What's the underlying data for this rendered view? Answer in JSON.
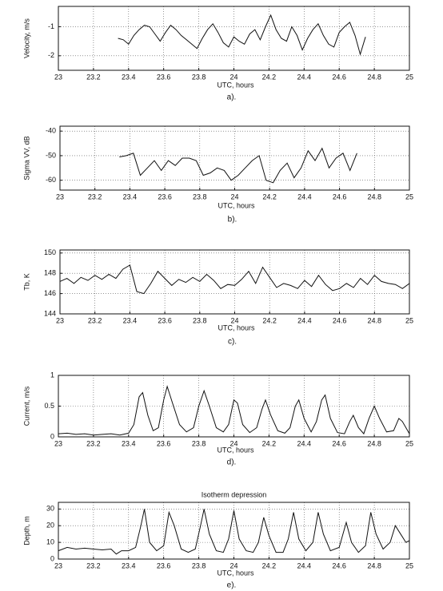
{
  "chart_data": [
    {
      "type": "line",
      "x_label": "UTC, hours",
      "y_label": "Velocity, m/s",
      "caption": "a).",
      "color": "#111111",
      "grid": true,
      "xlim": [
        23,
        25
      ],
      "ylim": [
        -2.5,
        -0.3
      ],
      "xticks": [
        23,
        23.2,
        23.4,
        23.6,
        23.8,
        24,
        24.2,
        24.4,
        24.6,
        24.8,
        25
      ],
      "yticks": [
        -2,
        -1
      ],
      "x": [
        23.34,
        23.37,
        23.4,
        23.43,
        23.46,
        23.49,
        23.52,
        23.55,
        23.58,
        23.61,
        23.64,
        23.67,
        23.7,
        23.73,
        23.76,
        23.79,
        23.82,
        23.85,
        23.88,
        23.91,
        23.94,
        23.97,
        24.0,
        24.03,
        24.06,
        24.09,
        24.12,
        24.15,
        24.18,
        24.21,
        24.24,
        24.27,
        24.3,
        24.33,
        24.36,
        24.39,
        24.42,
        24.45,
        24.48,
        24.51,
        24.54,
        24.57,
        24.6,
        24.63,
        24.66,
        24.69,
        24.72,
        24.75
      ],
      "values": [
        -1.4,
        -1.45,
        -1.6,
        -1.3,
        -1.1,
        -0.95,
        -1.0,
        -1.25,
        -1.5,
        -1.2,
        -0.95,
        -1.1,
        -1.3,
        -1.45,
        -1.6,
        -1.75,
        -1.4,
        -1.1,
        -0.9,
        -1.2,
        -1.55,
        -1.7,
        -1.35,
        -1.5,
        -1.6,
        -1.25,
        -1.1,
        -1.45,
        -1.0,
        -0.6,
        -1.1,
        -1.4,
        -1.5,
        -1.0,
        -1.3,
        -1.8,
        -1.4,
        -1.1,
        -0.9,
        -1.3,
        -1.6,
        -1.7,
        -1.2,
        -1.0,
        -0.85,
        -1.3,
        -1.95,
        -1.35
      ]
    },
    {
      "type": "line",
      "x_label": "UTC, hours",
      "y_label": "Sigma VV, dB",
      "caption": "b).",
      "color": "#111111",
      "grid": true,
      "xlim": [
        23,
        25
      ],
      "ylim": [
        -64,
        -38
      ],
      "xticks": [
        23,
        23.2,
        23.4,
        23.6,
        23.8,
        24,
        24.2,
        24.4,
        24.6,
        24.8,
        25
      ],
      "yticks": [
        -60,
        -50,
        -40
      ],
      "x": [
        23.34,
        23.38,
        23.42,
        23.46,
        23.5,
        23.54,
        23.58,
        23.62,
        23.66,
        23.7,
        23.74,
        23.78,
        23.82,
        23.86,
        23.9,
        23.94,
        23.98,
        24.02,
        24.06,
        24.1,
        24.14,
        24.18,
        24.22,
        24.26,
        24.3,
        24.34,
        24.38,
        24.42,
        24.46,
        24.5,
        24.54,
        24.58,
        24.62,
        24.66,
        24.7
      ],
      "values": [
        -50.5,
        -50,
        -49,
        -58,
        -55,
        -52,
        -56,
        -52,
        -54,
        -51,
        -51,
        -52,
        -58,
        -57,
        -55,
        -56,
        -60,
        -58,
        -55,
        -52,
        -50,
        -60,
        -61,
        -56,
        -53,
        -59,
        -55,
        -48,
        -52,
        -47,
        -55,
        -51,
        -49,
        -56,
        -49
      ]
    },
    {
      "type": "line",
      "x_label": "UTC, hours",
      "y_label": "Tb, K",
      "caption": "c).",
      "color": "#111111",
      "grid": true,
      "xlim": [
        23,
        25
      ],
      "ylim": [
        144,
        150.3
      ],
      "xticks": [
        23,
        23.2,
        23.4,
        23.6,
        23.8,
        24,
        24.2,
        24.4,
        24.6,
        24.8,
        25
      ],
      "yticks": [
        144,
        146,
        148,
        150
      ],
      "x": [
        23,
        23.04,
        23.08,
        23.12,
        23.16,
        23.2,
        23.24,
        23.28,
        23.32,
        23.36,
        23.4,
        23.44,
        23.48,
        23.52,
        23.56,
        23.6,
        23.64,
        23.68,
        23.72,
        23.76,
        23.8,
        23.84,
        23.88,
        23.92,
        23.96,
        24,
        24.04,
        24.08,
        24.12,
        24.16,
        24.2,
        24.24,
        24.28,
        24.32,
        24.36,
        24.4,
        24.44,
        24.48,
        24.52,
        24.56,
        24.6,
        24.64,
        24.68,
        24.72,
        24.76,
        24.8,
        24.84,
        24.88,
        24.92,
        24.96,
        25
      ],
      "values": [
        147.2,
        147.5,
        147.0,
        147.6,
        147.3,
        147.8,
        147.4,
        147.9,
        147.5,
        148.4,
        148.8,
        146.2,
        146.0,
        147.0,
        148.2,
        147.5,
        146.8,
        147.4,
        147.1,
        147.6,
        147.2,
        147.9,
        147.3,
        146.5,
        146.9,
        146.8,
        147.4,
        148.2,
        147.0,
        148.6,
        147.6,
        146.6,
        147.0,
        146.8,
        146.5,
        147.3,
        146.7,
        147.8,
        146.9,
        146.3,
        146.5,
        147.0,
        146.6,
        147.5,
        146.9,
        147.8,
        147.2,
        147.0,
        146.9,
        146.5,
        147.0
      ]
    },
    {
      "type": "line",
      "x_label": "UTC, hours",
      "y_label": "Current, m/s",
      "caption": "d).",
      "color": "#111111",
      "grid": true,
      "xlim": [
        23,
        25
      ],
      "ylim": [
        0,
        1
      ],
      "xticks": [
        23,
        23.2,
        23.4,
        23.6,
        23.8,
        24,
        24.2,
        24.4,
        24.6,
        24.8,
        25
      ],
      "yticks": [
        0,
        0.5,
        1
      ],
      "x": [
        23.0,
        23.05,
        23.1,
        23.15,
        23.2,
        23.25,
        23.3,
        23.35,
        23.4,
        23.43,
        23.46,
        23.48,
        23.51,
        23.54,
        23.57,
        23.6,
        23.62,
        23.65,
        23.69,
        23.73,
        23.77,
        23.8,
        23.83,
        23.86,
        23.9,
        23.94,
        23.97,
        24.0,
        24.02,
        24.05,
        24.09,
        24.13,
        24.16,
        24.18,
        24.21,
        24.25,
        24.29,
        24.32,
        24.35,
        24.37,
        24.4,
        24.44,
        24.47,
        24.5,
        24.52,
        24.55,
        24.59,
        24.63,
        24.66,
        24.68,
        24.71,
        24.74,
        24.77,
        24.8,
        24.83,
        24.87,
        24.91,
        24.94,
        24.96,
        25.0
      ],
      "values": [
        0.05,
        0.06,
        0.04,
        0.05,
        0.03,
        0.04,
        0.05,
        0.03,
        0.06,
        0.2,
        0.65,
        0.72,
        0.35,
        0.1,
        0.15,
        0.6,
        0.82,
        0.55,
        0.2,
        0.08,
        0.15,
        0.5,
        0.75,
        0.5,
        0.15,
        0.08,
        0.2,
        0.6,
        0.55,
        0.2,
        0.07,
        0.15,
        0.45,
        0.6,
        0.35,
        0.1,
        0.06,
        0.15,
        0.5,
        0.6,
        0.3,
        0.08,
        0.25,
        0.6,
        0.68,
        0.3,
        0.07,
        0.05,
        0.25,
        0.35,
        0.15,
        0.05,
        0.3,
        0.5,
        0.3,
        0.08,
        0.1,
        0.3,
        0.25,
        0.05
      ]
    },
    {
      "type": "line",
      "title": "Isotherm depression",
      "x_label": "UTC, hours",
      "y_label": "Depth, m",
      "caption": "e).",
      "color": "#111111",
      "grid": true,
      "xlim": [
        23,
        25
      ],
      "ylim": [
        0,
        34
      ],
      "xticks": [
        23,
        23.2,
        23.4,
        23.6,
        23.8,
        24,
        24.2,
        24.4,
        24.6,
        24.8,
        25
      ],
      "yticks": [
        0,
        10,
        20,
        30
      ],
      "x": [
        23.0,
        23.05,
        23.1,
        23.15,
        23.2,
        23.25,
        23.3,
        23.33,
        23.36,
        23.4,
        23.44,
        23.47,
        23.49,
        23.52,
        23.56,
        23.6,
        23.63,
        23.66,
        23.7,
        23.74,
        23.78,
        23.81,
        23.83,
        23.86,
        23.9,
        23.94,
        23.97,
        24.0,
        24.03,
        24.07,
        24.11,
        24.14,
        24.17,
        24.2,
        24.24,
        24.28,
        24.31,
        24.34,
        24.37,
        24.41,
        24.45,
        24.48,
        24.51,
        24.55,
        24.6,
        24.64,
        24.67,
        24.71,
        24.75,
        24.78,
        24.81,
        24.85,
        24.89,
        24.92,
        24.95,
        24.98,
        25.0
      ],
      "values": [
        5,
        7,
        6,
        6.5,
        6,
        5.5,
        6,
        3,
        5,
        5,
        7,
        20,
        30,
        10,
        5,
        8,
        28,
        20,
        6,
        4,
        6,
        20,
        30,
        15,
        5,
        4,
        12,
        29,
        12,
        5,
        4,
        10,
        25,
        14,
        4,
        4,
        12,
        28,
        12,
        5,
        10,
        28,
        15,
        5,
        7,
        22,
        10,
        4,
        8,
        28,
        15,
        6,
        10,
        20,
        15,
        10,
        11
      ]
    }
  ]
}
